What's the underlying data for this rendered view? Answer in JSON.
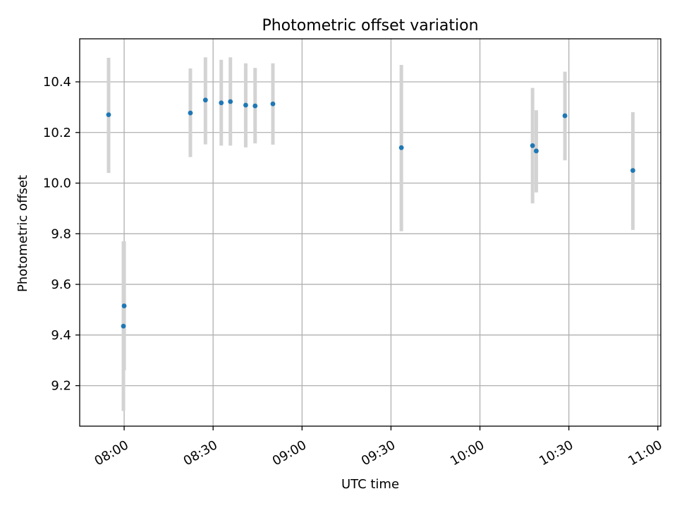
{
  "chart_data": {
    "type": "scatter",
    "title": "Photometric offset variation",
    "xlabel": "UTC time",
    "ylabel": "Photometric offset",
    "xlim": [
      "07:45",
      "11:01"
    ],
    "ylim": [
      9.04,
      10.57
    ],
    "x_ticks": [
      "08:00",
      "08:30",
      "09:00",
      "09:30",
      "10:00",
      "10:30",
      "11:00"
    ],
    "y_ticks": [
      "9.2",
      "9.4",
      "9.6",
      "9.8",
      "10.0",
      "10.2",
      "10.4"
    ],
    "grid": true,
    "colors": {
      "points": "#1f77b4",
      "error_bars": "#d3d3d3",
      "grid": "#b0b0b0"
    },
    "points": [
      {
        "time": "07:54:45",
        "y": 10.27,
        "err_low": 10.04,
        "err_high": 10.495
      },
      {
        "time": "07:59:45",
        "y": 9.435,
        "err_low": 9.1,
        "err_high": 9.77
      },
      {
        "time": "08:00:00",
        "y": 9.515,
        "err_low": 9.26,
        "err_high": 9.77
      },
      {
        "time": "08:22:20",
        "y": 10.277,
        "err_low": 10.103,
        "err_high": 10.453
      },
      {
        "time": "08:27:25",
        "y": 10.328,
        "err_low": 10.153,
        "err_high": 10.497
      },
      {
        "time": "08:32:45",
        "y": 10.317,
        "err_low": 10.148,
        "err_high": 10.487
      },
      {
        "time": "08:35:50",
        "y": 10.322,
        "err_low": 10.148,
        "err_high": 10.497
      },
      {
        "time": "08:41:00",
        "y": 10.308,
        "err_low": 10.141,
        "err_high": 10.473
      },
      {
        "time": "08:44:10",
        "y": 10.305,
        "err_low": 10.157,
        "err_high": 10.455
      },
      {
        "time": "08:50:10",
        "y": 10.313,
        "err_low": 10.152,
        "err_high": 10.473
      },
      {
        "time": "09:33:30",
        "y": 10.14,
        "err_low": 9.81,
        "err_high": 10.467
      },
      {
        "time": "10:17:45",
        "y": 10.148,
        "err_low": 9.92,
        "err_high": 10.376
      },
      {
        "time": "10:19:00",
        "y": 10.127,
        "err_low": 9.963,
        "err_high": 10.288
      },
      {
        "time": "10:28:40",
        "y": 10.266,
        "err_low": 10.09,
        "err_high": 10.44
      },
      {
        "time": "10:51:35",
        "y": 10.05,
        "err_low": 9.815,
        "err_high": 10.28
      }
    ]
  }
}
